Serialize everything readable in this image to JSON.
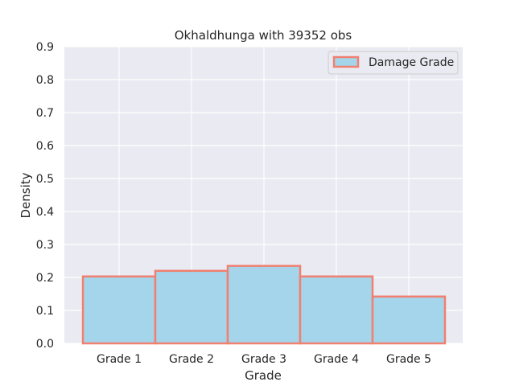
{
  "chart_data": {
    "type": "bar",
    "title": "Okhaldhunga with 39352 obs",
    "xlabel": "Grade",
    "ylabel": "Density",
    "categories": [
      "Grade 1",
      "Grade 2",
      "Grade 3",
      "Grade 4",
      "Grade 5"
    ],
    "series": [
      {
        "name": "Damage Grade",
        "values": [
          0.203,
          0.22,
          0.235,
          0.203,
          0.142
        ]
      }
    ],
    "ylim": [
      0,
      0.9
    ],
    "yticks": [
      "0.0",
      "0.1",
      "0.2",
      "0.3",
      "0.4",
      "0.5",
      "0.6",
      "0.7",
      "0.8",
      "0.9"
    ],
    "grid": true,
    "legend_position": "top-right",
    "colors": {
      "bar_fill": "#a5d5ea",
      "bar_edge": "#f08070",
      "plot_background": "#eaeaf2",
      "grid": "#ffffff"
    }
  }
}
